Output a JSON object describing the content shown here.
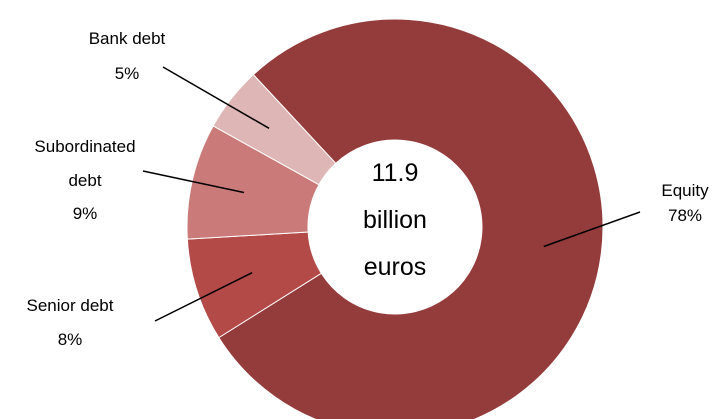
{
  "chart_data": {
    "type": "pie",
    "variant": "donut",
    "slices": [
      {
        "label": "Equity",
        "value": 78,
        "value_label": "78%",
        "color": "#943b3b"
      },
      {
        "label": "Senior debt",
        "value": 8,
        "value_label": "8%",
        "color": "#b34a47"
      },
      {
        "label": "Subordinated debt",
        "value": 9,
        "value_label": "9%",
        "color": "#c97a79"
      },
      {
        "label": "Bank debt",
        "value": 5,
        "value_label": "5%",
        "color": "#ddb6b5"
      }
    ],
    "center_text": [
      "11.9",
      "billion",
      "euros"
    ],
    "title": "",
    "legend": "none"
  }
}
